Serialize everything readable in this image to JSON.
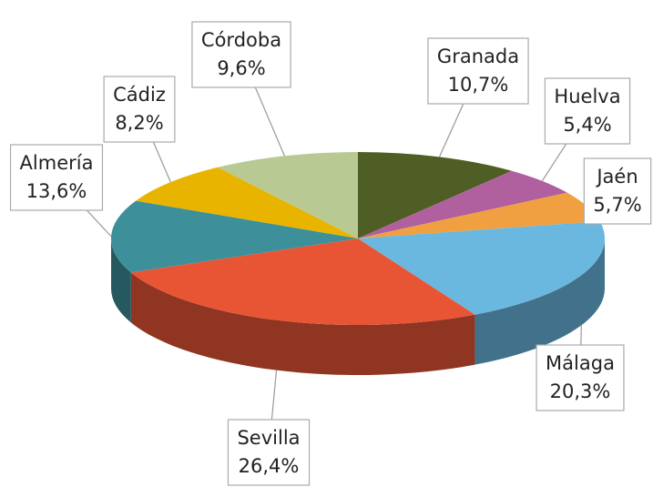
{
  "chart_data": {
    "type": "pie",
    "categories": [
      "Granada",
      "Huelva",
      "Jaén",
      "Málaga",
      "Sevilla",
      "Almería",
      "Cádiz",
      "Córdoba"
    ],
    "values": [
      10.7,
      5.4,
      5.7,
      20.3,
      26.4,
      13.6,
      8.2,
      9.6
    ],
    "value_labels": [
      "10,7%",
      "5,4%",
      "5,7%",
      "20,3%",
      "26,4%",
      "13,6%",
      "8,2%",
      "9,6%"
    ],
    "colors": [
      "#4e5e24",
      "#b0609e",
      "#f0a040",
      "#6ab8e0",
      "#e85535",
      "#3d8f9a",
      "#e8b400",
      "#b8c994"
    ]
  }
}
